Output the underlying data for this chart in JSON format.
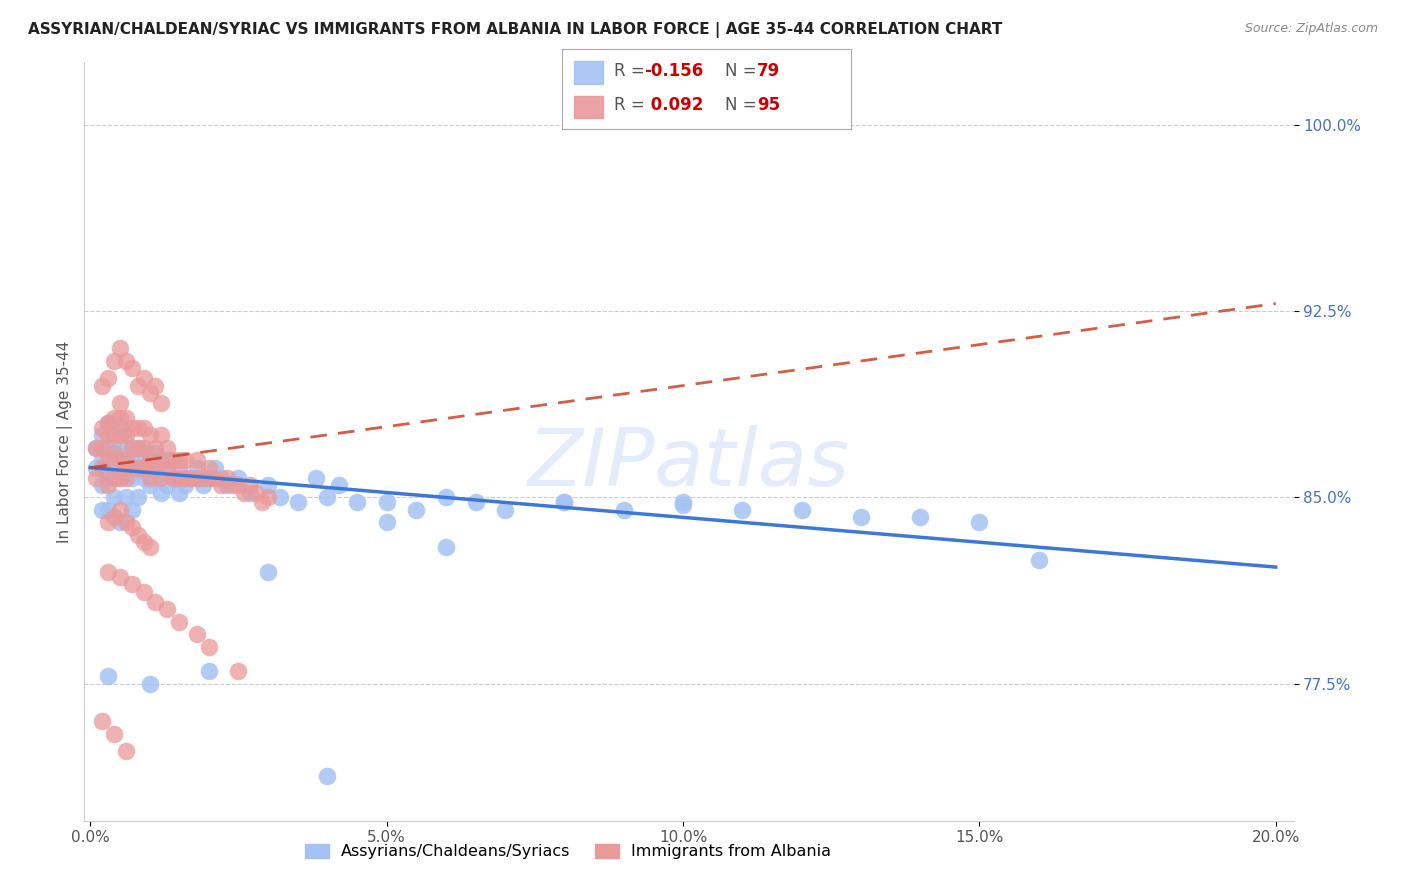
{
  "title": "ASSYRIAN/CHALDEAN/SYRIAC VS IMMIGRANTS FROM ALBANIA IN LABOR FORCE | AGE 35-44 CORRELATION CHART",
  "source": "Source: ZipAtlas.com",
  "color_blue": "#a4c2f4",
  "color_pink": "#ea9999",
  "color_blue_line": "#3c78d8",
  "color_pink_line": "#cc4125",
  "ylabel": "In Labor Force | Age 35-44",
  "legend_label1": "Assyrians/Chaldeans/Syriacs",
  "legend_label2": "Immigrants from Albania",
  "r_blue": -0.156,
  "n_blue": 79,
  "r_pink": 0.092,
  "n_pink": 95,
  "xlim": [
    0.0,
    0.2
  ],
  "ylim": [
    0.72,
    1.02
  ],
  "xticks": [
    0.0,
    0.05,
    0.1,
    0.15,
    0.2
  ],
  "xticklabels": [
    "0.0%",
    "5.0%",
    "10.0%",
    "15.0%",
    "20.0%"
  ],
  "yticks": [
    0.775,
    0.85,
    0.925,
    1.0
  ],
  "yticklabels": [
    "77.5%",
    "85.0%",
    "92.5%",
    "100.0%"
  ],
  "blue_x": [
    0.001,
    0.001,
    0.002,
    0.002,
    0.002,
    0.002,
    0.003,
    0.003,
    0.003,
    0.003,
    0.004,
    0.004,
    0.004,
    0.005,
    0.005,
    0.005,
    0.005,
    0.006,
    0.006,
    0.006,
    0.007,
    0.007,
    0.007,
    0.008,
    0.008,
    0.008,
    0.009,
    0.009,
    0.01,
    0.01,
    0.011,
    0.011,
    0.012,
    0.012,
    0.013,
    0.013,
    0.014,
    0.015,
    0.015,
    0.016,
    0.017,
    0.018,
    0.019,
    0.02,
    0.021,
    0.022,
    0.023,
    0.025,
    0.027,
    0.03,
    0.032,
    0.035,
    0.038,
    0.04,
    0.042,
    0.045,
    0.05,
    0.055,
    0.06,
    0.065,
    0.07,
    0.08,
    0.09,
    0.1,
    0.11,
    0.12,
    0.13,
    0.14,
    0.15,
    0.003,
    0.01,
    0.02,
    0.03,
    0.04,
    0.05,
    0.06,
    0.08,
    0.1,
    0.16
  ],
  "blue_y": [
    0.862,
    0.87,
    0.855,
    0.865,
    0.875,
    0.845,
    0.858,
    0.87,
    0.88,
    0.845,
    0.862,
    0.87,
    0.85,
    0.858,
    0.868,
    0.878,
    0.84,
    0.862,
    0.872,
    0.85,
    0.858,
    0.868,
    0.845,
    0.862,
    0.87,
    0.85,
    0.858,
    0.868,
    0.855,
    0.865,
    0.858,
    0.868,
    0.852,
    0.862,
    0.855,
    0.865,
    0.858,
    0.852,
    0.862,
    0.855,
    0.858,
    0.862,
    0.855,
    0.858,
    0.862,
    0.858,
    0.855,
    0.858,
    0.852,
    0.855,
    0.85,
    0.848,
    0.858,
    0.85,
    0.855,
    0.848,
    0.848,
    0.845,
    0.85,
    0.848,
    0.845,
    0.848,
    0.845,
    0.848,
    0.845,
    0.845,
    0.842,
    0.842,
    0.84,
    0.778,
    0.775,
    0.78,
    0.82,
    0.738,
    0.84,
    0.83,
    0.848,
    0.847,
    0.825
  ],
  "pink_x": [
    0.001,
    0.001,
    0.002,
    0.002,
    0.002,
    0.003,
    0.003,
    0.003,
    0.003,
    0.004,
    0.004,
    0.004,
    0.004,
    0.005,
    0.005,
    0.005,
    0.005,
    0.005,
    0.006,
    0.006,
    0.006,
    0.006,
    0.007,
    0.007,
    0.007,
    0.008,
    0.008,
    0.008,
    0.009,
    0.009,
    0.009,
    0.01,
    0.01,
    0.01,
    0.011,
    0.011,
    0.012,
    0.012,
    0.012,
    0.013,
    0.013,
    0.014,
    0.014,
    0.015,
    0.015,
    0.016,
    0.016,
    0.017,
    0.018,
    0.018,
    0.019,
    0.02,
    0.02,
    0.021,
    0.022,
    0.023,
    0.024,
    0.025,
    0.026,
    0.027,
    0.028,
    0.029,
    0.03,
    0.002,
    0.003,
    0.004,
    0.005,
    0.006,
    0.007,
    0.008,
    0.009,
    0.01,
    0.011,
    0.012,
    0.003,
    0.004,
    0.005,
    0.006,
    0.007,
    0.008,
    0.009,
    0.01,
    0.003,
    0.005,
    0.007,
    0.009,
    0.011,
    0.013,
    0.015,
    0.018,
    0.02,
    0.025,
    0.002,
    0.004,
    0.006
  ],
  "pink_y": [
    0.858,
    0.87,
    0.862,
    0.87,
    0.878,
    0.855,
    0.865,
    0.875,
    0.88,
    0.858,
    0.868,
    0.875,
    0.882,
    0.858,
    0.865,
    0.875,
    0.882,
    0.888,
    0.858,
    0.865,
    0.875,
    0.882,
    0.862,
    0.87,
    0.878,
    0.862,
    0.87,
    0.878,
    0.862,
    0.87,
    0.878,
    0.858,
    0.865,
    0.875,
    0.862,
    0.87,
    0.858,
    0.865,
    0.875,
    0.862,
    0.87,
    0.858,
    0.865,
    0.858,
    0.865,
    0.858,
    0.865,
    0.858,
    0.858,
    0.865,
    0.858,
    0.858,
    0.862,
    0.858,
    0.855,
    0.858,
    0.855,
    0.855,
    0.852,
    0.855,
    0.852,
    0.848,
    0.85,
    0.895,
    0.898,
    0.905,
    0.91,
    0.905,
    0.902,
    0.895,
    0.898,
    0.892,
    0.895,
    0.888,
    0.84,
    0.842,
    0.845,
    0.84,
    0.838,
    0.835,
    0.832,
    0.83,
    0.82,
    0.818,
    0.815,
    0.812,
    0.808,
    0.805,
    0.8,
    0.795,
    0.79,
    0.78,
    0.76,
    0.755,
    0.748
  ]
}
